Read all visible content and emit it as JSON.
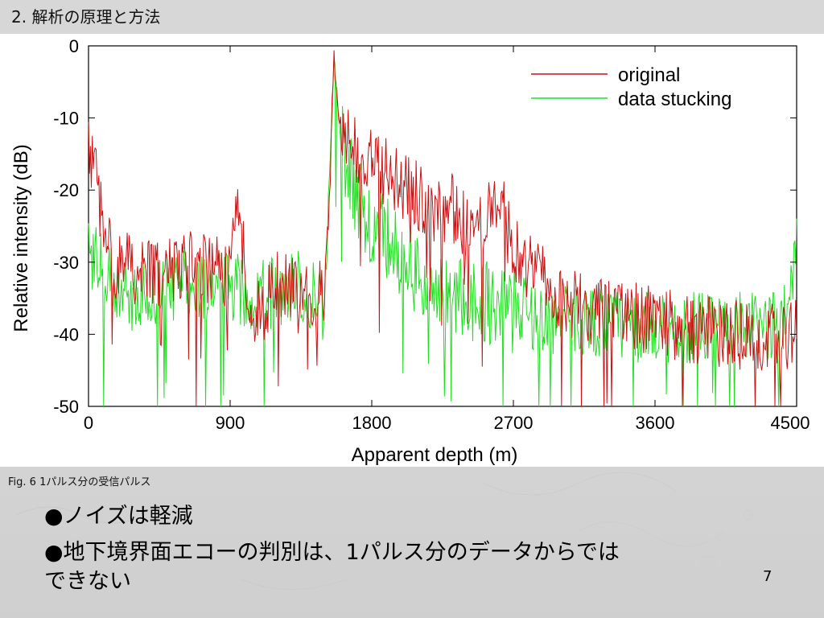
{
  "slide": {
    "title": "2. 解析の原理と方法",
    "caption": "Fig. 6  1パルス分の受信パルス",
    "bullets": [
      "●ノイズは軽減",
      "●地下境界面エコーの判別は、1パルス分のデータからではできない"
    ],
    "page_number": "7"
  },
  "colors": {
    "original": "#cc1111",
    "data_stucking": "#22dd22",
    "axis": "#000000"
  },
  "chart_data": {
    "type": "line",
    "title": "",
    "xlabel": "Apparent depth (m)",
    "ylabel": "Relative intensity (dB)",
    "xlim": [
      0,
      4500
    ],
    "ylim": [
      -50,
      0
    ],
    "xticks": [
      0,
      900,
      1800,
      2700,
      3600,
      4500
    ],
    "yticks": [
      0,
      -10,
      -20,
      -30,
      -40,
      -50
    ],
    "xtick_labels": [
      "0",
      "900",
      "1800",
      "2700",
      "3600",
      "4500"
    ],
    "ytick_labels": [
      "0",
      "-10",
      "-20",
      "-30",
      "-40",
      "-50"
    ],
    "legend_position": "top-right",
    "series": [
      {
        "name": "original",
        "x": [
          0,
          150,
          300,
          450,
          600,
          750,
          900,
          950,
          1050,
          1200,
          1350,
          1500,
          1560,
          1600,
          1650,
          1700,
          1800,
          1900,
          2000,
          2100,
          2200,
          2300,
          2400,
          2500,
          2600,
          2700,
          2800,
          2900,
          3000,
          3200,
          3400,
          3600,
          3800,
          4000,
          4200,
          4400,
          4500
        ],
        "y": [
          -14,
          -30,
          -31,
          -32,
          -30,
          -31,
          -32,
          -23,
          -38,
          -33,
          -34,
          -35,
          -2,
          -12,
          -13,
          -15,
          -16,
          -18,
          -20,
          -21,
          -23,
          -22,
          -25,
          -24,
          -21,
          -28,
          -31,
          -33,
          -35,
          -37,
          -37,
          -38,
          -39,
          -40,
          -40,
          -41,
          -40
        ]
      },
      {
        "name": "data stucking",
        "x": [
          0,
          150,
          300,
          450,
          600,
          750,
          900,
          1050,
          1200,
          1350,
          1500,
          1560,
          1600,
          1650,
          1700,
          1800,
          1900,
          2000,
          2100,
          2200,
          2300,
          2400,
          2500,
          2600,
          2700,
          2800,
          2900,
          3000,
          3200,
          3400,
          3600,
          3800,
          4000,
          4200,
          4400,
          4500
        ],
        "y": [
          -28,
          -33,
          -35,
          -34,
          -33,
          -34,
          -33,
          -35,
          -34,
          -33,
          -36,
          -2,
          -13,
          -17,
          -21,
          -25,
          -27,
          -30,
          -32,
          -35,
          -35,
          -35,
          -35,
          -36,
          -35,
          -37,
          -38,
          -38,
          -38,
          -39,
          -39,
          -39,
          -39,
          -39,
          -39,
          -28
        ]
      }
    ]
  }
}
